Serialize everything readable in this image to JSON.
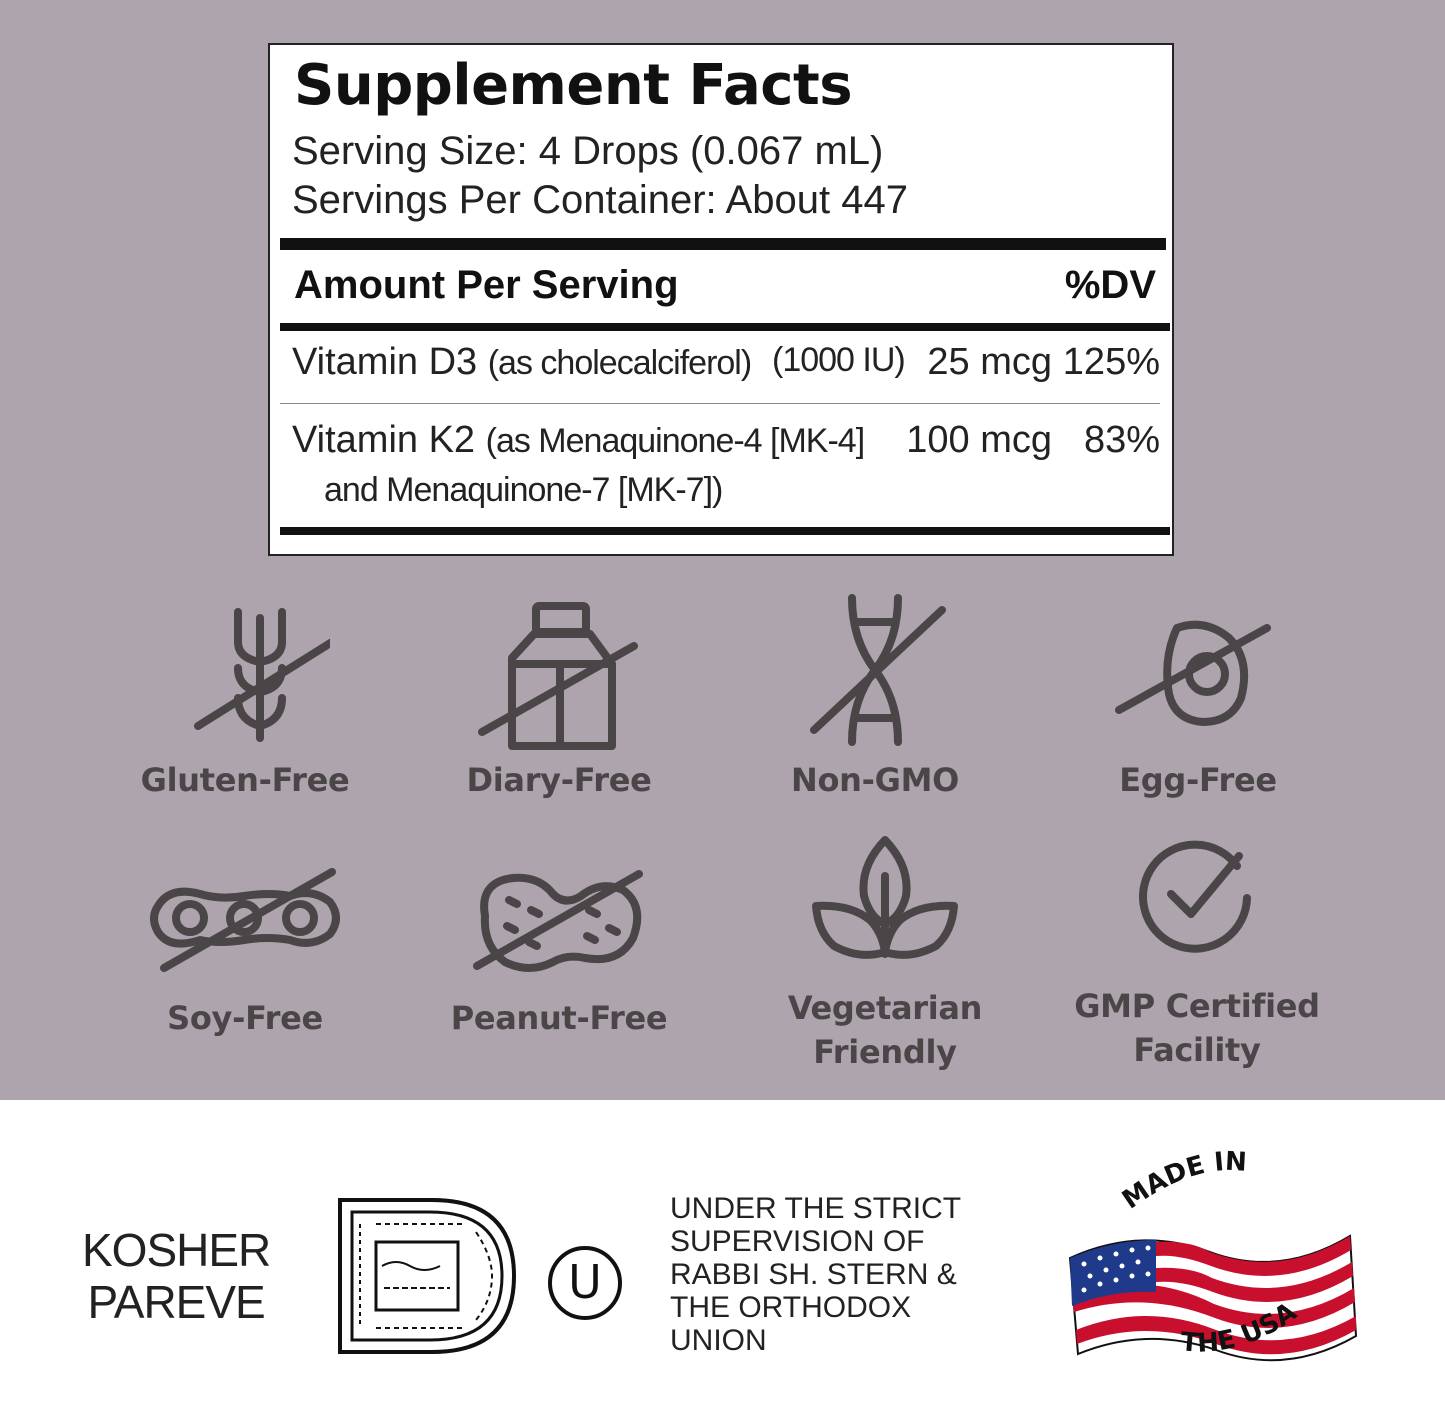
{
  "supplement_facts": {
    "title": "Supplement Facts",
    "serving_size": "Serving Size: 4 Drops (0.067 mL)",
    "servings_per_container": "Servings Per Container: About 447",
    "amount_header": "Amount Per Serving",
    "dv_header": "%DV",
    "rows": [
      {
        "name": "Vitamin D3",
        "source": "(as cholecalciferol)",
        "iu": "(1000 IU)",
        "amount": "25 mcg",
        "dv": "125%"
      },
      {
        "name": "Vitamin K2",
        "source": "(as Menaquinone-4 [MK-4]",
        "source_cont": "and Menaquinone-7 [MK-7])",
        "amount": "100 mcg",
        "dv": "83%"
      }
    ]
  },
  "features": [
    {
      "label": "Gluten-Free",
      "icon": "wheat-crossed-icon"
    },
    {
      "label": "Diary-Free",
      "icon": "milk-carton-crossed-icon"
    },
    {
      "label": "Non-GMO",
      "icon": "dna-crossed-icon"
    },
    {
      "label": "Egg-Free",
      "icon": "egg-crossed-icon"
    },
    {
      "label": "Soy-Free",
      "icon": "soybean-crossed-icon"
    },
    {
      "label": "Peanut-Free",
      "icon": "peanut-crossed-icon"
    },
    {
      "label_line1": "Vegetarian",
      "label_line2": "Friendly",
      "icon": "leaf-plant-icon"
    },
    {
      "label_line1": "GMP Certified",
      "label_line2": "Facility",
      "icon": "check-circle-icon"
    }
  ],
  "certification": {
    "kosher_line1": "KOSHER",
    "kosher_line2": "PAREVE",
    "kosher_seal_icon": "kosher-d-seal-icon",
    "ou_icon": "ou-symbol-icon",
    "ou_letter": "U",
    "supervision_lines": [
      "UNDER THE STRICT",
      "SUPERVISION OF",
      "RABBI SH. STERN &",
      "THE ORTHODOX",
      "UNION"
    ],
    "made_in_top": "MADE IN",
    "made_in_bottom": "THE USA",
    "flag_icon": "us-flag-icon"
  },
  "colors": {
    "panel_background": "#ada4ae",
    "icon_color": "#4a4648",
    "text_dark": "#111111"
  }
}
